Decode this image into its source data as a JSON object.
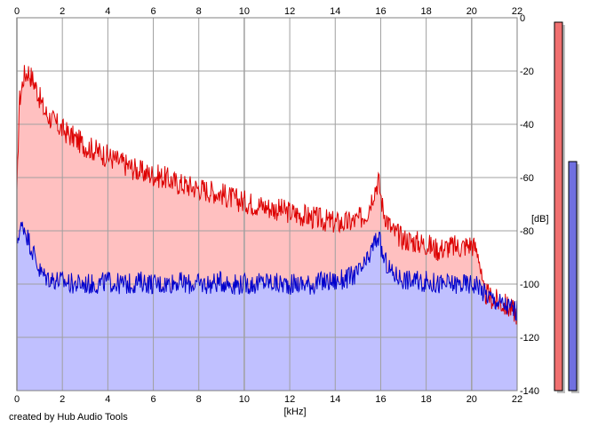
{
  "chart_data": {
    "type": "area",
    "xlabel": "[kHz]",
    "ylabel": "[dB]",
    "xlim": [
      0,
      22
    ],
    "ylim": [
      -140,
      0
    ],
    "x_ticks": [
      "0",
      "2",
      "4",
      "6",
      "8",
      "10",
      "12",
      "14",
      "16",
      "18",
      "20",
      "22"
    ],
    "y_ticks": [
      "0",
      "-20",
      "-40",
      "-60",
      "-80",
      "-100",
      "-120",
      "-140"
    ],
    "grid": true,
    "series": [
      {
        "color": "#dd0000",
        "fill": "#ffc0c0",
        "x": [
          0,
          0.1,
          0.3,
          0.5,
          0.8,
          1.0,
          1.2,
          1.5,
          2.0,
          2.5,
          3.0,
          3.5,
          4.0,
          4.5,
          5.0,
          5.5,
          6.0,
          6.5,
          7.0,
          7.5,
          8.0,
          8.5,
          9.0,
          9.5,
          10.0,
          10.5,
          11.0,
          11.5,
          12.0,
          12.5,
          13.0,
          13.5,
          14.0,
          14.5,
          15.0,
          15.4,
          15.7,
          15.9,
          16.1,
          16.5,
          17.0,
          17.5,
          18.0,
          18.5,
          19.0,
          19.5,
          20.0,
          20.3,
          20.5,
          21.0,
          21.5,
          22.0
        ],
        "values": [
          -68,
          -32,
          -22,
          -20,
          -25,
          -30,
          -35,
          -38,
          -42,
          -45,
          -48,
          -50,
          -52,
          -54,
          -56,
          -58,
          -59,
          -60,
          -62,
          -63,
          -64,
          -65,
          -66,
          -68,
          -69,
          -70,
          -71,
          -72,
          -73,
          -74,
          -75,
          -76,
          -77,
          -77,
          -76,
          -73,
          -65,
          -61,
          -72,
          -80,
          -83,
          -84,
          -85,
          -87,
          -86,
          -86,
          -85,
          -88,
          -103,
          -106,
          -108,
          -111
        ]
      },
      {
        "color": "#0000cc",
        "fill": "#c0c0ff",
        "x": [
          0,
          0.1,
          0.3,
          0.5,
          0.8,
          1.0,
          1.2,
          1.5,
          2.0,
          2.5,
          3.0,
          3.5,
          4.0,
          4.5,
          5.0,
          5.5,
          6.0,
          6.5,
          7.0,
          7.5,
          8.0,
          8.5,
          9.0,
          9.5,
          10.0,
          10.5,
          11.0,
          11.5,
          12.0,
          12.5,
          13.0,
          13.5,
          14.0,
          14.5,
          15.0,
          15.4,
          15.7,
          15.9,
          16.1,
          16.5,
          17.0,
          17.5,
          18.0,
          18.5,
          19.0,
          19.5,
          20.0,
          20.3,
          20.5,
          21.0,
          21.5,
          22.0
        ],
        "values": [
          -85,
          -80,
          -78,
          -83,
          -90,
          -95,
          -97,
          -98,
          -99,
          -100,
          -100,
          -100,
          -99,
          -100,
          -100,
          -99,
          -100,
          -100,
          -99,
          -100,
          -100,
          -100,
          -99,
          -100,
          -100,
          -100,
          -99,
          -100,
          -100,
          -100,
          -100,
          -99,
          -99,
          -98,
          -96,
          -92,
          -85,
          -82,
          -90,
          -96,
          -98,
          -99,
          -99,
          -100,
          -100,
          -100,
          -100,
          -100,
          -103,
          -106,
          -108,
          -110
        ]
      }
    ],
    "level_meters": [
      {
        "color": "#f07070",
        "value": 2
      },
      {
        "color": "#7070e0",
        "value": -54
      }
    ]
  },
  "footer": {
    "credit": "created by Hub Audio Tools"
  }
}
